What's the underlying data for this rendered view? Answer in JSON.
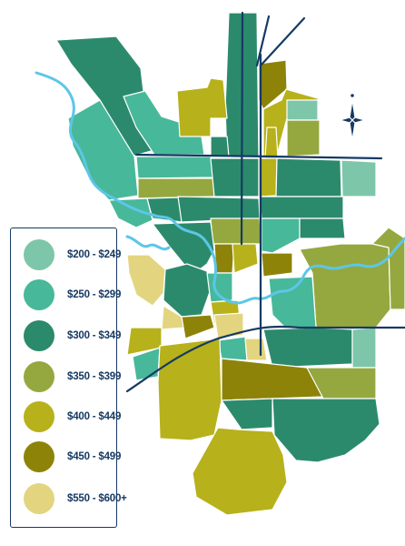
{
  "legend": {
    "items": [
      {
        "label": "$200 - $249",
        "color": "#7dc6a9"
      },
      {
        "label": "$250 - $299",
        "color": "#48b89a"
      },
      {
        "label": "$300 - $349",
        "color": "#2c8a6c"
      },
      {
        "label": "$350 - $399",
        "color": "#95a83f"
      },
      {
        "label": "$400 - $449",
        "color": "#b7b11b"
      },
      {
        "label": "$450 - $499",
        "color": "#8d8309"
      },
      {
        "label": "$550 - $600+",
        "color": "#e3d57f"
      }
    ]
  },
  "map": {
    "compass": "compass-rose-icon"
  }
}
